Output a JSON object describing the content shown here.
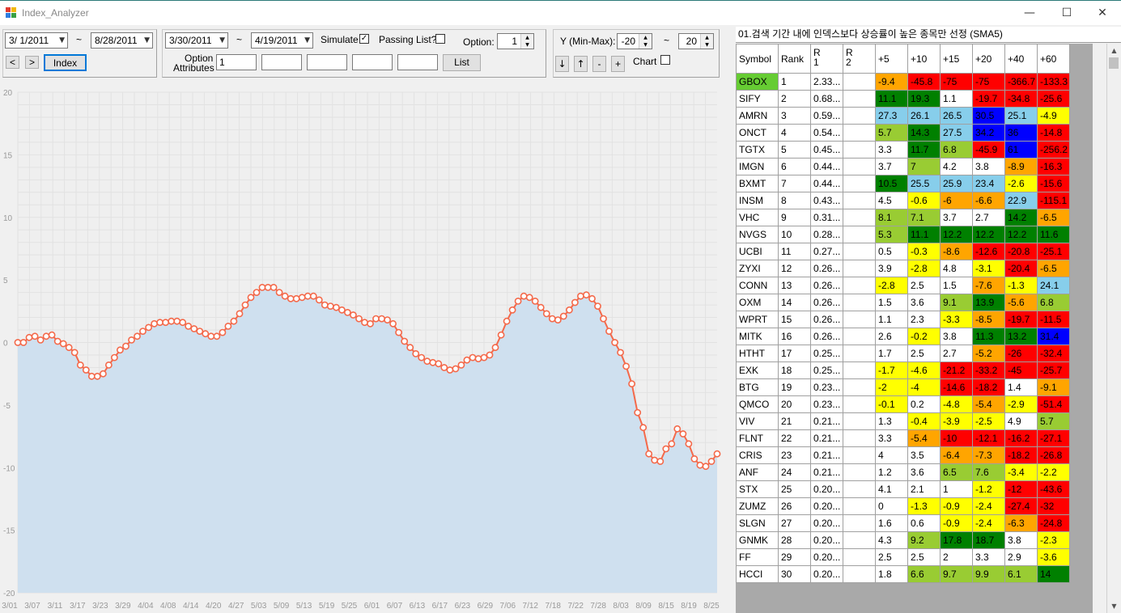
{
  "window": {
    "title": "Index_Analyzer",
    "minimize": "—",
    "maximize": "☐",
    "close": "✕"
  },
  "panel1": {
    "start_date": "3/  1/2011",
    "tilde": "~",
    "end_date": "8/28/2011",
    "prev_label": "<",
    "next_label": ">",
    "index_label": "Index"
  },
  "panel2": {
    "start_date": "3/30/2011",
    "tilde": "~",
    "end_date": "4/19/2011",
    "simulate_label": "Simulate",
    "simulate_checked": "✓",
    "passing_label": "Passing List?",
    "option_label": "Option:",
    "option_value": "1",
    "option_attributes_label_1": "Option",
    "option_attributes_label_2": "Attributes",
    "attr_1": "1",
    "attr_2": "",
    "attr_3": "",
    "attr_4": "",
    "attr_5": "",
    "list_label": "List"
  },
  "panel3": {
    "y_label": "Y (Min-Max):",
    "y_min": "-20",
    "tilde": "~",
    "y_max": "20",
    "down_label": "↓",
    "up_label": "↑",
    "minus_label": "-",
    "plus_label": "+",
    "chart_label": "Chart"
  },
  "chart_data": {
    "type": "area",
    "title": "",
    "xlabel": "",
    "ylabel": "",
    "ylim": [
      -20,
      20
    ],
    "yticks": [
      20,
      15,
      10,
      5,
      0,
      -5,
      -10,
      -15,
      -20
    ],
    "xticks": [
      "3/01",
      "3/07",
      "3/11",
      "3/17",
      "3/23",
      "3/29",
      "4/04",
      "4/08",
      "4/14",
      "4/20",
      "4/27",
      "5/03",
      "5/09",
      "5/13",
      "5/19",
      "5/25",
      "6/01",
      "6/07",
      "6/13",
      "6/17",
      "6/23",
      "6/29",
      "7/06",
      "7/12",
      "7/18",
      "7/22",
      "7/28",
      "8/03",
      "8/09",
      "8/15",
      "8/19",
      "8/25"
    ],
    "grid": true,
    "colors": {
      "line": "#f4694a",
      "fill": "#cfe0ef",
      "plot_bg": "#efefef",
      "page_bg": "#f0f0f0"
    },
    "values": [
      0.0,
      0.0,
      0.4,
      0.5,
      0.2,
      0.5,
      0.6,
      0.1,
      -0.1,
      -0.4,
      -0.8,
      -1.8,
      -2.2,
      -2.7,
      -2.7,
      -2.5,
      -1.8,
      -1.2,
      -0.6,
      -0.3,
      0.2,
      0.5,
      0.9,
      1.2,
      1.5,
      1.6,
      1.6,
      1.7,
      1.7,
      1.6,
      1.3,
      1.1,
      0.9,
      0.7,
      0.5,
      0.5,
      0.8,
      1.3,
      1.7,
      2.3,
      3.0,
      3.6,
      4.0,
      4.4,
      4.4,
      4.4,
      4.0,
      3.7,
      3.5,
      3.5,
      3.6,
      3.7,
      3.7,
      3.4,
      3.0,
      2.9,
      2.8,
      2.6,
      2.4,
      2.2,
      1.9,
      1.6,
      1.5,
      1.9,
      1.9,
      1.8,
      1.5,
      0.8,
      0.1,
      -0.4,
      -0.9,
      -1.2,
      -1.5,
      -1.6,
      -1.7,
      -2.0,
      -2.2,
      -2.1,
      -1.8,
      -1.4,
      -1.2,
      -1.3,
      -1.2,
      -1.0,
      -0.4,
      0.6,
      1.7,
      2.6,
      3.3,
      3.7,
      3.6,
      3.3,
      2.8,
      2.3,
      1.9,
      1.8,
      2.1,
      2.6,
      3.2,
      3.7,
      3.8,
      3.5,
      2.9,
      1.9,
      0.9,
      0.0,
      -0.8,
      -1.9,
      -3.3,
      -5.6,
      -6.8,
      -8.9,
      -9.4,
      -9.5,
      -8.5,
      -8.1,
      -6.9,
      -7.3,
      -8.1,
      -9.3,
      -9.8,
      -9.9,
      -9.5,
      -8.9
    ]
  },
  "grid_panel": {
    "title": "01.검색 기간 내에 인덱스보다 상승률이 높은 종목만 선정 (SMA5)",
    "headers": [
      "Symbol",
      "Rank",
      "R\n1",
      "R\n2",
      "+5",
      "+10",
      "+15",
      "+20",
      "+40",
      "+60"
    ],
    "rows": [
      {
        "sym": "GBOX",
        "rank": "1",
        "r1": "2.33...",
        "r2": "",
        "v": [
          "-9.4",
          "-45.8",
          "-75",
          "-75",
          "-366.7",
          "-133.3"
        ]
      },
      {
        "sym": "SIFY",
        "rank": "2",
        "r1": "0.68...",
        "r2": "",
        "v": [
          "11.1",
          "19.3",
          "1.1",
          "-19.7",
          "-34.8",
          "-25.6"
        ]
      },
      {
        "sym": "AMRN",
        "rank": "3",
        "r1": "0.59...",
        "r2": "",
        "v": [
          "27.3",
          "26.1",
          "26.5",
          "30.5",
          "25.1",
          "-4.9"
        ]
      },
      {
        "sym": "ONCT",
        "rank": "4",
        "r1": "0.54...",
        "r2": "",
        "v": [
          "5.7",
          "14.3",
          "27.5",
          "34.2",
          "36",
          "-14.8"
        ]
      },
      {
        "sym": "TGTX",
        "rank": "5",
        "r1": "0.45...",
        "r2": "",
        "v": [
          "3.3",
          "11.7",
          "6.8",
          "-45.9",
          "61",
          "-256.2"
        ]
      },
      {
        "sym": "IMGN",
        "rank": "6",
        "r1": "0.44...",
        "r2": "",
        "v": [
          "3.7",
          "7",
          "4.2",
          "3.8",
          "-8.9",
          "-16.3"
        ]
      },
      {
        "sym": "BXMT",
        "rank": "7",
        "r1": "0.44...",
        "r2": "",
        "v": [
          "10.5",
          "25.5",
          "25.9",
          "23.4",
          "-2.6",
          "-15.6"
        ]
      },
      {
        "sym": "INSM",
        "rank": "8",
        "r1": "0.43...",
        "r2": "",
        "v": [
          "4.5",
          "-0.6",
          "-6",
          "-6.6",
          "22.9",
          "-115.1"
        ]
      },
      {
        "sym": "VHC",
        "rank": "9",
        "r1": "0.31...",
        "r2": "",
        "v": [
          "8.1",
          "7.1",
          "3.7",
          "2.7",
          "14.2",
          "-6.5"
        ]
      },
      {
        "sym": "NVGS",
        "rank": "10",
        "r1": "0.28...",
        "r2": "",
        "v": [
          "5.3",
          "11.1",
          "12.2",
          "12.2",
          "12.2",
          "11.6"
        ]
      },
      {
        "sym": "UCBI",
        "rank": "11",
        "r1": "0.27...",
        "r2": "",
        "v": [
          "0.5",
          "-0.3",
          "-8.6",
          "-12.6",
          "-20.8",
          "-25.1"
        ]
      },
      {
        "sym": "ZYXI",
        "rank": "12",
        "r1": "0.26...",
        "r2": "",
        "v": [
          "3.9",
          "-2.8",
          "4.8",
          "-3.1",
          "-20.4",
          "-6.5"
        ]
      },
      {
        "sym": "CONN",
        "rank": "13",
        "r1": "0.26...",
        "r2": "",
        "v": [
          "-2.8",
          "2.5",
          "1.5",
          "-7.6",
          "-1.3",
          "24.1"
        ]
      },
      {
        "sym": "OXM",
        "rank": "14",
        "r1": "0.26...",
        "r2": "",
        "v": [
          "1.5",
          "3.6",
          "9.1",
          "13.9",
          "-5.6",
          "6.8"
        ]
      },
      {
        "sym": "WPRT",
        "rank": "15",
        "r1": "0.26...",
        "r2": "",
        "v": [
          "1.1",
          "2.3",
          "-3.3",
          "-8.5",
          "-19.7",
          "-11.5"
        ]
      },
      {
        "sym": "MITK",
        "rank": "16",
        "r1": "0.26...",
        "r2": "",
        "v": [
          "2.6",
          "-0.2",
          "3.8",
          "11.3",
          "13.2",
          "31.4"
        ]
      },
      {
        "sym": "HTHT",
        "rank": "17",
        "r1": "0.25...",
        "r2": "",
        "v": [
          "1.7",
          "2.5",
          "2.7",
          "-5.2",
          "-26",
          "-32.4"
        ]
      },
      {
        "sym": "EXK",
        "rank": "18",
        "r1": "0.25...",
        "r2": "",
        "v": [
          "-1.7",
          "-4.6",
          "-21.2",
          "-33.2",
          "-45",
          "-25.7"
        ]
      },
      {
        "sym": "BTG",
        "rank": "19",
        "r1": "0.23...",
        "r2": "",
        "v": [
          "-2",
          "-4",
          "-14.6",
          "-18.2",
          "1.4",
          "-9.1"
        ]
      },
      {
        "sym": "QMCO",
        "rank": "20",
        "r1": "0.23...",
        "r2": "",
        "v": [
          "-0.1",
          "0.2",
          "-4.8",
          "-5.4",
          "-2.9",
          "-51.4"
        ]
      },
      {
        "sym": "VIV",
        "rank": "21",
        "r1": "0.21...",
        "r2": "",
        "v": [
          "1.3",
          "-0.4",
          "-3.9",
          "-2.5",
          "4.9",
          "5.7"
        ]
      },
      {
        "sym": "FLNT",
        "rank": "22",
        "r1": "0.21...",
        "r2": "",
        "v": [
          "3.3",
          "-5.4",
          "-10",
          "-12.1",
          "-16.2",
          "-27.1"
        ]
      },
      {
        "sym": "CRIS",
        "rank": "23",
        "r1": "0.21...",
        "r2": "",
        "v": [
          "4",
          "3.5",
          "-6.4",
          "-7.3",
          "-18.2",
          "-26.8"
        ]
      },
      {
        "sym": "ANF",
        "rank": "24",
        "r1": "0.21...",
        "r2": "",
        "v": [
          "1.2",
          "3.6",
          "6.5",
          "7.6",
          "-3.4",
          "-2.2"
        ]
      },
      {
        "sym": "STX",
        "rank": "25",
        "r1": "0.20...",
        "r2": "",
        "v": [
          "4.1",
          "2.1",
          "1",
          "-1.2",
          "-12",
          "-43.6"
        ]
      },
      {
        "sym": "ZUMZ",
        "rank": "26",
        "r1": "0.20...",
        "r2": "",
        "v": [
          "0",
          "-1.3",
          "-0.9",
          "-2.4",
          "-27.4",
          "-32"
        ]
      },
      {
        "sym": "SLGN",
        "rank": "27",
        "r1": "0.20...",
        "r2": "",
        "v": [
          "1.6",
          "0.6",
          "-0.9",
          "-2.4",
          "-6.3",
          "-24.8"
        ]
      },
      {
        "sym": "GNMK",
        "rank": "28",
        "r1": "0.20...",
        "r2": "",
        "v": [
          "4.3",
          "9.2",
          "17.8",
          "18.7",
          "3.8",
          "-2.3"
        ]
      },
      {
        "sym": "FF",
        "rank": "29",
        "r1": "0.20...",
        "r2": "",
        "v": [
          "2.5",
          "2.5",
          "2",
          "3.3",
          "2.9",
          "-3.6"
        ]
      },
      {
        "sym": "HCCI",
        "rank": "30",
        "r1": "0.20...",
        "r2": "",
        "v": [
          "1.8",
          "6.6",
          "9.7",
          "9.9",
          "6.1",
          "14"
        ]
      }
    ],
    "colors": {
      "symbol_highlight": "#66cc33",
      "yellow": "#ffff00",
      "orange": "#ffa500",
      "red": "#ff0000",
      "light_green": "#99cc33",
      "green": "#008000",
      "light_blue": "#87ceeb",
      "blue": "#0000ff"
    }
  }
}
